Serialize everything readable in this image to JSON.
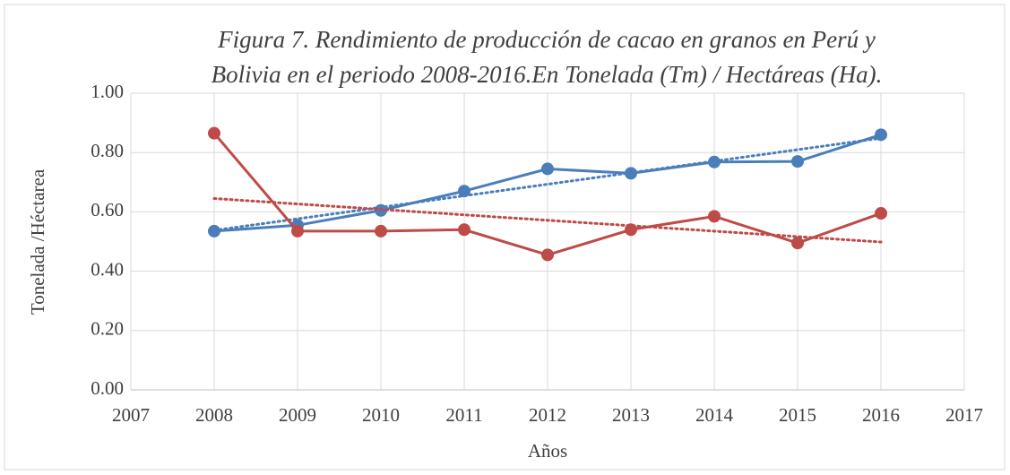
{
  "chart_data": {
    "type": "line",
    "title": [
      "Figura 7. Rendimiento de producción de cacao en granos en Perú y",
      "Bolivia en el periodo 2008-2016.En Tonelada (Tm) / Hectáreas (Ha)."
    ],
    "x_label": "Años",
    "y_label": "Tonelada /Héctarea",
    "x": [
      2008,
      2009,
      2010,
      2011,
      2012,
      2013,
      2014,
      2015,
      2016
    ],
    "series": [
      {
        "color": "#4a7ebb",
        "values": [
          0.535,
          0.555,
          0.605,
          0.67,
          0.745,
          0.73,
          0.768,
          0.77,
          0.86
        ]
      },
      {
        "color": "#be4b48",
        "values": [
          0.865,
          0.535,
          0.535,
          0.54,
          0.455,
          0.54,
          0.585,
          0.495,
          0.595
        ]
      }
    ],
    "trendline": true,
    "xlim": [
      2007,
      2017
    ],
    "xticks": [
      2007,
      2008,
      2009,
      2010,
      2011,
      2012,
      2013,
      2014,
      2015,
      2016,
      2017
    ],
    "ylim": [
      0,
      1
    ],
    "yticks": [
      {
        "value": 0,
        "label": "0.00"
      },
      {
        "value": 0.2,
        "label": "0.20"
      },
      {
        "value": 0.4,
        "label": "0.40"
      },
      {
        "value": 0.6,
        "label": "0.60"
      },
      {
        "value": 0.8,
        "label": "0.80"
      },
      {
        "value": 1,
        "label": "1.00"
      }
    ],
    "grid": true
  }
}
